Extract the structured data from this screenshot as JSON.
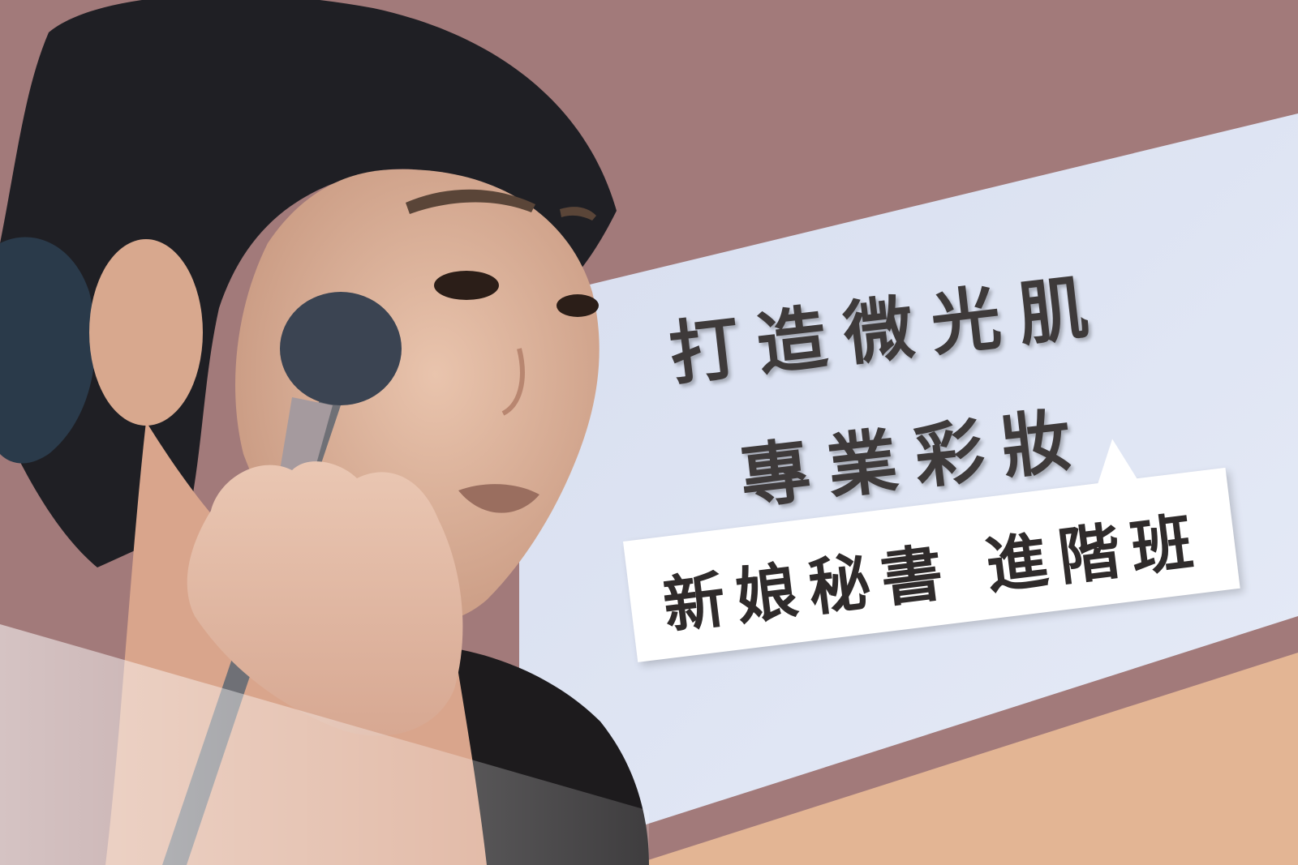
{
  "headline": {
    "line1": "打造微光肌",
    "line2": "專業彩妝"
  },
  "badge": {
    "text": "新娘秘書 進階班"
  },
  "colors": {
    "mauve_background": "#a27a7a",
    "light_blue_panel": "#dde4f5",
    "peach_band": "#e3b594",
    "text_dark": "#3e3a3a"
  },
  "photo_description_icon": "makeup-artist-brush-photo"
}
